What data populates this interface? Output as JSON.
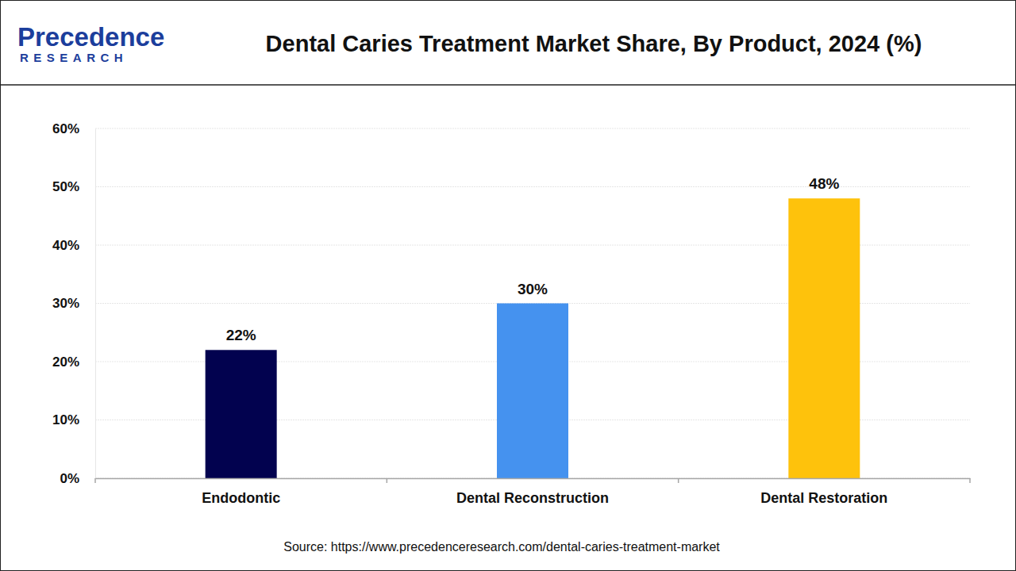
{
  "chart_data": {
    "type": "bar",
    "title": "Dental Caries Treatment Market Share, By Product, 2024 (%)",
    "annotations": [
      "Precedence",
      "RESEARCH",
      "Source: https://www.precedenceresearch.com/dental-caries-treatment-market"
    ],
    "categories": [
      "Endodontic",
      "Dental Reconstruction",
      "Dental Restoration"
    ],
    "values": [
      22,
      30,
      48
    ],
    "value_labels": [
      "22%",
      "30%",
      "48%"
    ],
    "colors": [
      "#02024f",
      "#4592ef",
      "#fec20c"
    ],
    "ylim": [
      0,
      60
    ],
    "yticks": [
      {
        "value": 0,
        "label": "0%"
      },
      {
        "value": 10,
        "label": "10%"
      },
      {
        "value": 20,
        "label": "20%"
      },
      {
        "value": 30,
        "label": "30%"
      },
      {
        "value": 40,
        "label": "40%"
      },
      {
        "value": 50,
        "label": "50%"
      },
      {
        "value": 60,
        "label": "60%"
      }
    ],
    "grid": true,
    "data_labels": true
  }
}
